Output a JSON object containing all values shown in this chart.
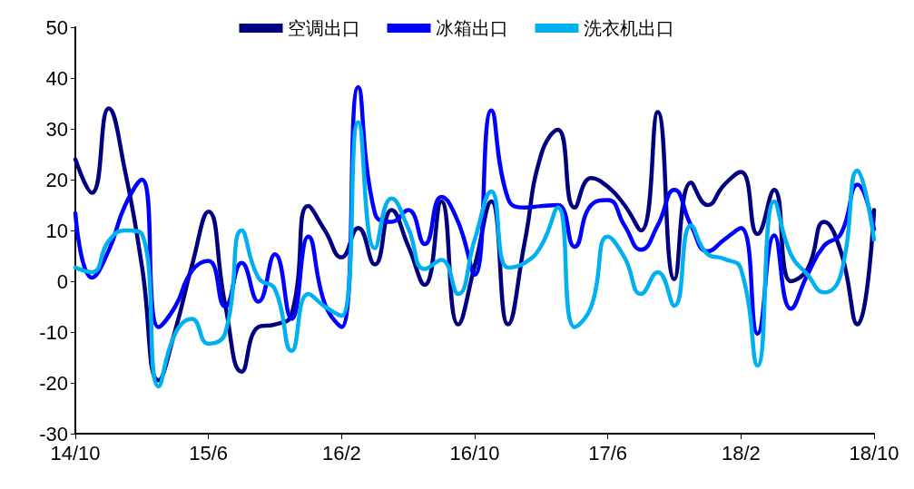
{
  "chart_data": {
    "type": "line",
    "categories": [
      "14/10",
      null,
      null,
      null,
      null,
      null,
      null,
      null,
      "15/6",
      null,
      null,
      null,
      null,
      null,
      null,
      null,
      "16/2",
      null,
      null,
      null,
      null,
      null,
      null,
      null,
      "16/10",
      null,
      null,
      null,
      null,
      null,
      null,
      null,
      "17/6",
      null,
      null,
      null,
      null,
      null,
      null,
      null,
      "18/2",
      null,
      null,
      null,
      null,
      null,
      null,
      null,
      "18/10"
    ],
    "series": [
      {
        "name": "空调出口",
        "color": "#000080",
        "values": [
          24,
          17.4,
          34,
          21.5,
          3,
          -19.5,
          -9.7,
          3,
          13.7,
          -4.5,
          -17.8,
          -9,
          -8.5,
          -6.5,
          14.8,
          10,
          4.7,
          10.5,
          3.3,
          14,
          7,
          -0.7,
          15.7,
          -8.5,
          3,
          15.7,
          -8.5,
          7.6,
          25,
          29.8,
          14.5,
          20.3,
          18.6,
          15,
          10,
          33.3,
          0.4,
          19.4,
          15,
          19,
          21.5,
          9.3,
          18,
          0,
          2.4,
          11.7,
          5.9,
          -8.5,
          14
        ]
      },
      {
        "name": "冰箱出口",
        "color": "#0000ff",
        "values": [
          13.4,
          0.7,
          6,
          15,
          20,
          -9,
          -5,
          2,
          4,
          -5,
          3.6,
          -4,
          5.3,
          -7.4,
          8.8,
          -4.5,
          -9,
          38.2,
          13.4,
          11.7,
          14,
          7.3,
          16.6,
          11.7,
          1.3,
          33.6,
          16.3,
          14.5,
          14.8,
          15,
          6.8,
          15,
          16,
          11,
          6.2,
          11,
          18,
          11,
          5.9,
          8.2,
          10.5,
          -10.3,
          9,
          -5.4,
          1.3,
          7,
          9.3,
          19,
          10.2
        ]
      },
      {
        "name": "洗衣机出口",
        "color": "#00b0f0",
        "values": [
          2.7,
          1.8,
          7.9,
          10,
          9.3,
          -20.7,
          -10.3,
          -7.4,
          -12.3,
          -10.3,
          10,
          0.7,
          -1.6,
          -13.7,
          -2.5,
          -5,
          -6.8,
          31.3,
          6.5,
          16.3,
          10.5,
          2.4,
          4.2,
          -2.5,
          8.2,
          17.7,
          2.7,
          3.6,
          7,
          14.5,
          -9,
          -5,
          8.8,
          4.7,
          -2.5,
          1.8,
          -4.8,
          11,
          5.3,
          4.4,
          2.4,
          -16.6,
          15.7,
          5.3,
          1.3,
          -2.2,
          1.3,
          21.8,
          8.2
        ]
      }
    ],
    "ylim": [
      -30,
      50
    ],
    "yticks": [
      -30,
      -20,
      -10,
      0,
      10,
      20,
      30,
      40,
      50
    ],
    "legend": "top",
    "grid": false,
    "marker": "none",
    "line_style": "solid"
  }
}
